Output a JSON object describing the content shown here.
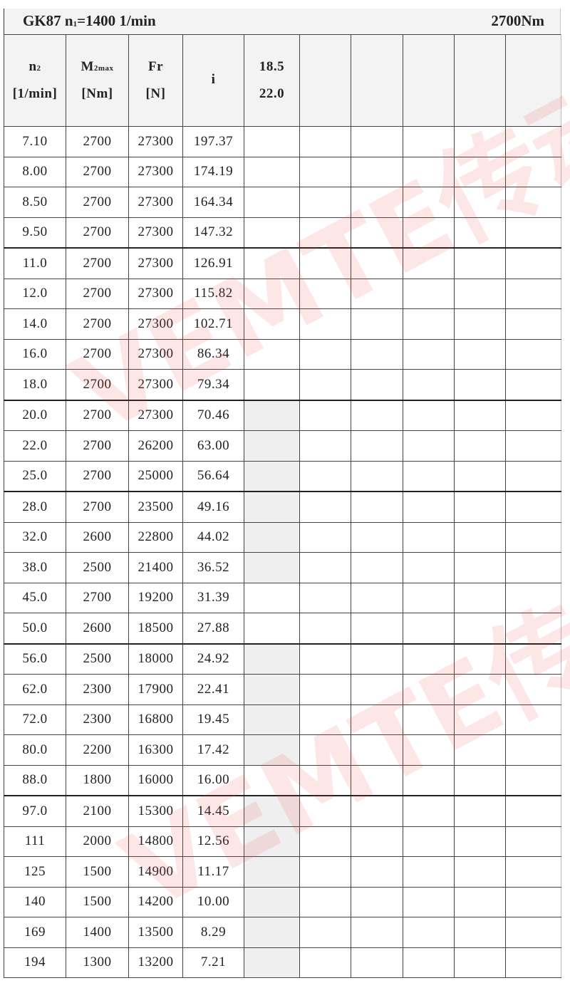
{
  "title": {
    "model": "GK87",
    "n1_label": "n",
    "n1_sub": "1",
    "n1_value": "=1400 1/min",
    "torque": "2700Nm"
  },
  "headers": [
    {
      "main": "n",
      "sub": "2",
      "unit": "[1/min]"
    },
    {
      "main": "M",
      "sub": "2max",
      "unit": "[Nm]"
    },
    {
      "main": "Fr",
      "sub": "",
      "unit": "[N]"
    },
    {
      "main": "i",
      "sub": "",
      "unit": ""
    },
    {
      "main": "18.5",
      "sub": "",
      "unit": "22.0"
    },
    {
      "main": "",
      "sub": "",
      "unit": ""
    },
    {
      "main": "",
      "sub": "",
      "unit": ""
    },
    {
      "main": "",
      "sub": "",
      "unit": ""
    },
    {
      "main": "",
      "sub": "",
      "unit": ""
    },
    {
      "main": "",
      "sub": "",
      "unit": ""
    }
  ],
  "rows": [
    {
      "n2": "7.10",
      "m2max": "2700",
      "fr": "27300",
      "i": "197.37",
      "shaded": false
    },
    {
      "n2": "8.00",
      "m2max": "2700",
      "fr": "27300",
      "i": "174.19",
      "shaded": false
    },
    {
      "n2": "8.50",
      "m2max": "2700",
      "fr": "27300",
      "i": "164.34",
      "shaded": false
    },
    {
      "n2": "9.50",
      "m2max": "2700",
      "fr": "27300",
      "i": "147.32",
      "shaded": false,
      "group_end": true
    },
    {
      "n2": "11.0",
      "m2max": "2700",
      "fr": "27300",
      "i": "126.91",
      "shaded": false
    },
    {
      "n2": "12.0",
      "m2max": "2700",
      "fr": "27300",
      "i": "115.82",
      "shaded": false
    },
    {
      "n2": "14.0",
      "m2max": "2700",
      "fr": "27300",
      "i": "102.71",
      "shaded": false
    },
    {
      "n2": "16.0",
      "m2max": "2700",
      "fr": "27300",
      "i": "86.34",
      "shaded": false
    },
    {
      "n2": "18.0",
      "m2max": "2700",
      "fr": "27300",
      "i": "79.34",
      "shaded": false,
      "group_end": true
    },
    {
      "n2": "20.0",
      "m2max": "2700",
      "fr": "27300",
      "i": "70.46",
      "shaded": true
    },
    {
      "n2": "22.0",
      "m2max": "2700",
      "fr": "26200",
      "i": "63.00",
      "shaded": true
    },
    {
      "n2": "25.0",
      "m2max": "2700",
      "fr": "25000",
      "i": "56.64",
      "shaded": true,
      "group_end": true
    },
    {
      "n2": "28.0",
      "m2max": "2700",
      "fr": "23500",
      "i": "49.16",
      "shaded": true
    },
    {
      "n2": "32.0",
      "m2max": "2600",
      "fr": "22800",
      "i": "44.02",
      "shaded": true
    },
    {
      "n2": "38.0",
      "m2max": "2500",
      "fr": "21400",
      "i": "36.52",
      "shaded": true
    },
    {
      "n2": "45.0",
      "m2max": "2700",
      "fr": "19200",
      "i": "31.39",
      "shaded": false
    },
    {
      "n2": "50.0",
      "m2max": "2600",
      "fr": "18500",
      "i": "27.88",
      "shaded": false,
      "group_end": true
    },
    {
      "n2": "56.0",
      "m2max": "2500",
      "fr": "18000",
      "i": "24.92",
      "shaded": true
    },
    {
      "n2": "62.0",
      "m2max": "2300",
      "fr": "17900",
      "i": "22.41",
      "shaded": true
    },
    {
      "n2": "72.0",
      "m2max": "2300",
      "fr": "16800",
      "i": "19.45",
      "shaded": true
    },
    {
      "n2": "80.0",
      "m2max": "2200",
      "fr": "16300",
      "i": "17.42",
      "shaded": true
    },
    {
      "n2": "88.0",
      "m2max": "1800",
      "fr": "16000",
      "i": "16.00",
      "shaded": false,
      "group_end": true
    },
    {
      "n2": "97.0",
      "m2max": "2100",
      "fr": "15300",
      "i": "14.45",
      "shaded": true
    },
    {
      "n2": "111",
      "m2max": "2000",
      "fr": "14800",
      "i": "12.56",
      "shaded": true
    },
    {
      "n2": "125",
      "m2max": "1500",
      "fr": "14900",
      "i": "11.17",
      "shaded": true
    },
    {
      "n2": "140",
      "m2max": "1500",
      "fr": "14200",
      "i": "10.00",
      "shaded": true
    },
    {
      "n2": "169",
      "m2max": "1400",
      "fr": "13500",
      "i": "8.29",
      "shaded": true
    },
    {
      "n2": "194",
      "m2max": "1300",
      "fr": "13200",
      "i": "7.21",
      "shaded": true
    }
  ],
  "watermark": "VEMTE传动",
  "colors": {
    "shade": "#efefef",
    "watermark": "#eb3c3c"
  }
}
